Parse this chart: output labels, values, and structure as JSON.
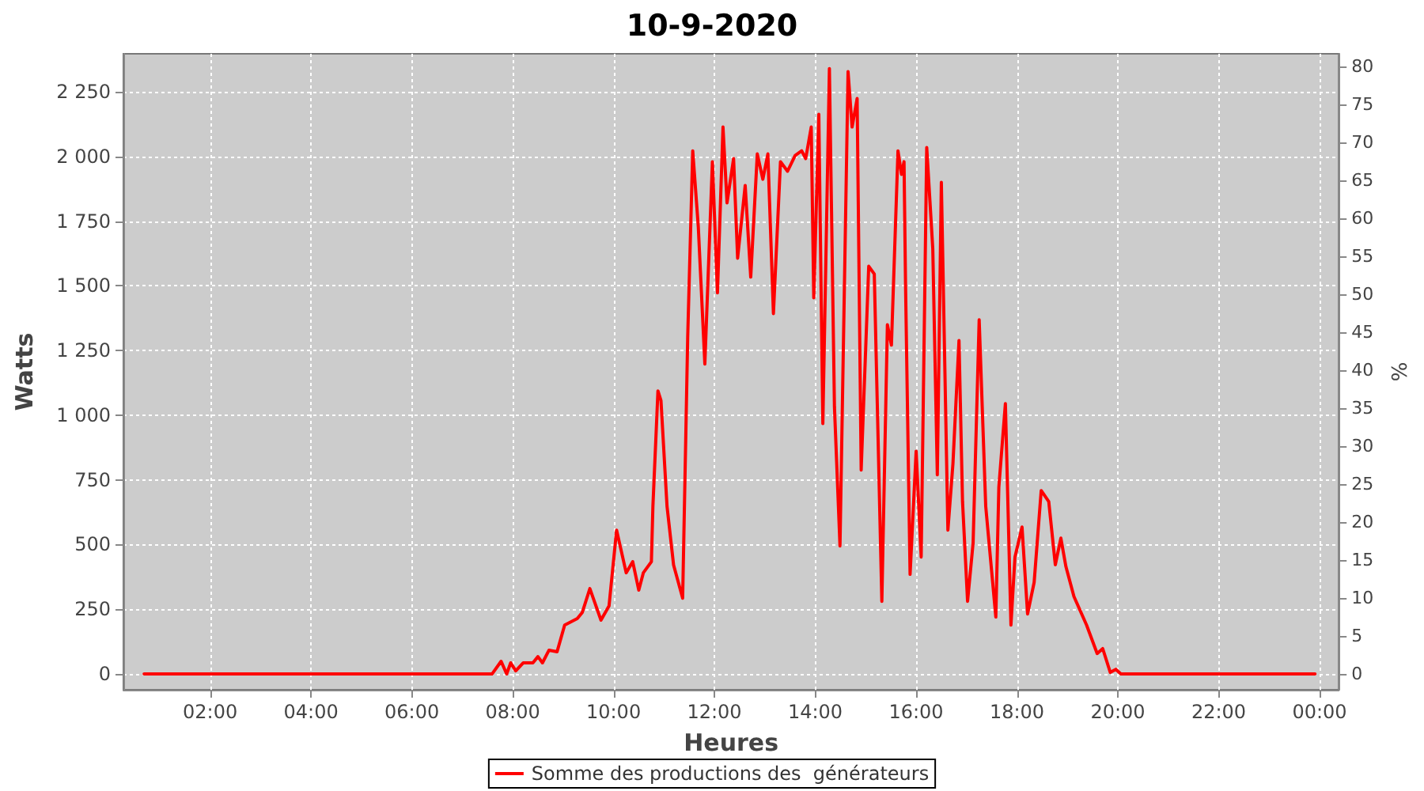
{
  "chart_data": {
    "type": "line",
    "title": "10-9-2020",
    "xlabel": "Heures",
    "ylabel": "Watts",
    "y2label": "%",
    "xlim": [
      0.28,
      24.38
    ],
    "xticks": [
      {
        "value": 2,
        "label": "02:00"
      },
      {
        "value": 4,
        "label": "04:00"
      },
      {
        "value": 6,
        "label": "06:00"
      },
      {
        "value": 8,
        "label": "08:00"
      },
      {
        "value": 10,
        "label": "10:00"
      },
      {
        "value": 12,
        "label": "12:00"
      },
      {
        "value": 14,
        "label": "14:00"
      },
      {
        "value": 16,
        "label": "16:00"
      },
      {
        "value": 18,
        "label": "18:00"
      },
      {
        "value": 20,
        "label": "20:00"
      },
      {
        "value": 22,
        "label": "22:00"
      },
      {
        "value": 24,
        "label": "00:00"
      }
    ],
    "ylim": [
      -61,
      2397
    ],
    "yticks": [
      0,
      250,
      500,
      750,
      {
        "value": 1000,
        "label": "1 000"
      },
      {
        "value": 1250,
        "label": "1 250"
      },
      {
        "value": 1500,
        "label": "1 500"
      },
      {
        "value": 1750,
        "label": "1 750"
      },
      {
        "value": 2000,
        "label": "2 000"
      },
      {
        "value": 2250,
        "label": "2 250"
      }
    ],
    "y2lim": [
      -2.1,
      81.7
    ],
    "y2ticks": [
      0,
      5,
      10,
      15,
      20,
      25,
      30,
      35,
      40,
      45,
      50,
      55,
      60,
      65,
      70,
      75,
      80
    ],
    "grid": true,
    "legend": "bottom",
    "marker": "none",
    "line_style": "solid",
    "series": [
      {
        "name": "Somme des productions des  générateurs",
        "color": "#ff0000",
        "x": [
          0.69,
          7.59,
          7.77,
          7.88,
          7.96,
          8.06,
          8.21,
          8.4,
          8.5,
          8.59,
          8.72,
          8.88,
          9.03,
          9.28,
          9.38,
          9.53,
          9.75,
          9.91,
          10.06,
          10.25,
          10.38,
          10.5,
          10.59,
          10.75,
          10.78,
          10.88,
          10.94,
          11.06,
          11.19,
          11.37,
          11.47,
          11.57,
          11.68,
          11.81,
          11.96,
          12.06,
          12.17,
          12.25,
          12.38,
          12.46,
          12.61,
          12.72,
          12.85,
          12.96,
          13.06,
          13.17,
          13.31,
          13.45,
          13.6,
          13.73,
          13.81,
          13.92,
          13.97,
          14.07,
          14.15,
          14.28,
          14.38,
          14.49,
          14.65,
          14.73,
          14.83,
          14.91,
          15.06,
          15.17,
          15.32,
          15.43,
          15.51,
          15.64,
          15.71,
          15.76,
          15.79,
          15.88,
          16.0,
          16.1,
          16.21,
          16.33,
          16.42,
          16.5,
          16.63,
          16.73,
          16.85,
          16.92,
          17.02,
          17.13,
          17.25,
          17.38,
          17.58,
          17.64,
          17.77,
          17.88,
          17.96,
          18.1,
          18.21,
          18.34,
          18.48,
          18.63,
          18.76,
          18.87,
          18.97,
          19.13,
          19.38,
          19.59,
          19.7,
          19.85,
          19.96,
          20.06,
          23.91
        ],
        "values": [
          0,
          0,
          49,
          0,
          43,
          12,
          43,
          43,
          67,
          43,
          92,
          86,
          189,
          214,
          238,
          330,
          208,
          263,
          556,
          391,
          434,
          324,
          391,
          434,
          648,
          1094,
          1057,
          648,
          421,
          293,
          1301,
          2022,
          1729,
          1198,
          1980,
          1473,
          2114,
          1821,
          1992,
          1607,
          1888,
          1534,
          2010,
          1912,
          2010,
          1393,
          1980,
          1943,
          2004,
          2022,
          1992,
          2114,
          1454,
          2163,
          968,
          2340,
          1033,
          495,
          2328,
          2114,
          2224,
          788,
          1576,
          1546,
          281,
          1350,
          1271,
          2022,
          1931,
          1980,
          1503,
          385,
          861,
          452,
          2035,
          1644,
          770,
          1900,
          556,
          813,
          1289,
          666,
          281,
          507,
          1369,
          648,
          220,
          721,
          1045,
          189,
          452,
          568,
          232,
          354,
          709,
          666,
          422,
          525,
          415,
          299,
          189,
          79,
          98,
          6,
          18,
          0,
          0
        ]
      }
    ]
  }
}
